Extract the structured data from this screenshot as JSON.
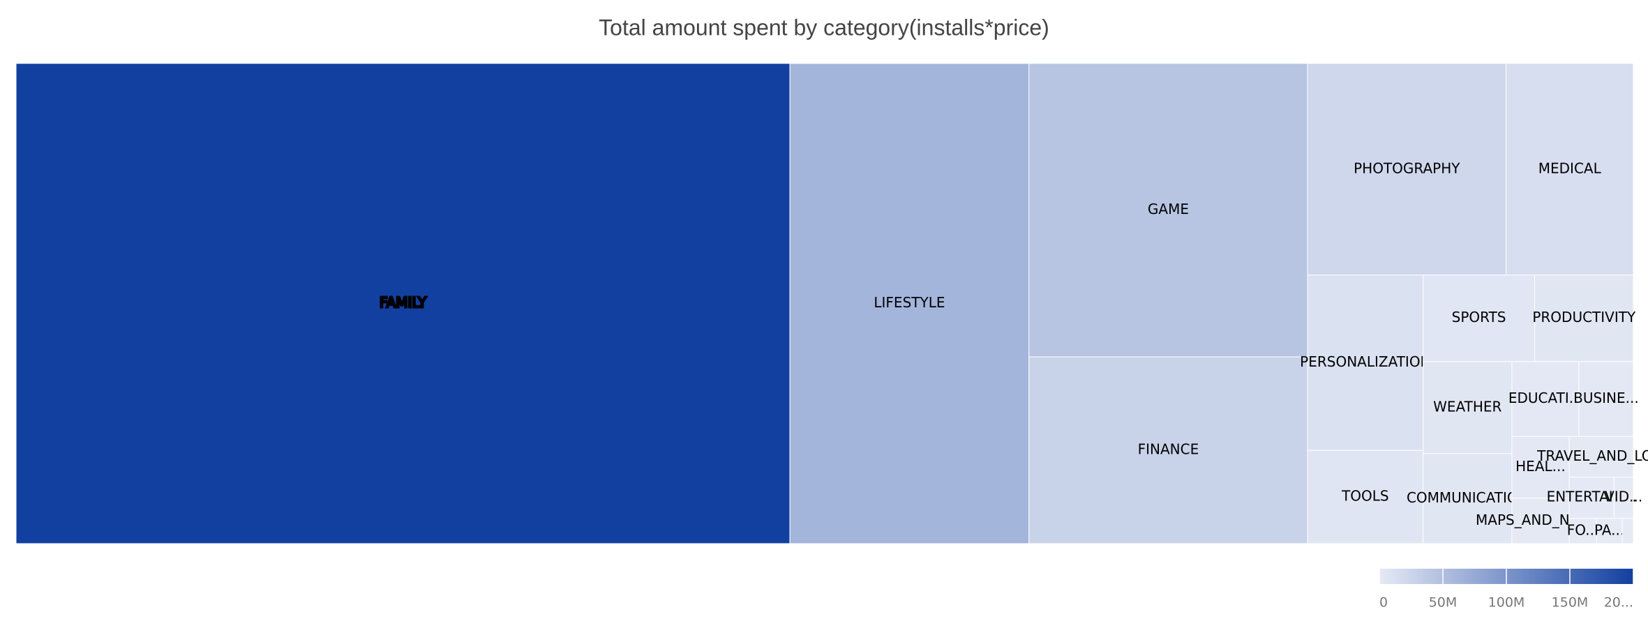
{
  "chart_data": {
    "type": "treemap",
    "title": "Total amount spent by category(installs*price)",
    "categories": [
      "FAMILY",
      "LIFESTYLE",
      "GAME",
      "FINANCE",
      "PHOTOGRAPHY",
      "MEDICAL",
      "PERSONALIZATION",
      "TOOLS",
      "SPORTS",
      "PRODUCTIVITY",
      "WEATHER",
      "COMMUNICATION",
      "EDUCATI...",
      "BUSINE...",
      "HEAL...",
      "MAPS_AND_NAVI...",
      "TRAVEL_AND_LO...",
      "ENTERTAIN...",
      "VID...",
      "FO...",
      "PA...",
      null
    ],
    "values": [
      200000000,
      61800000,
      44000000,
      28000000,
      22600000,
      14500000,
      10900000,
      5800000,
      5200000,
      4600000,
      4400000,
      4300000,
      2700000,
      2200000,
      1900000,
      1400000,
      1400000,
      1000000,
      430000,
      370000,
      350000,
      150000
    ],
    "colorscale": [
      "#e6eaf5",
      "#1240a0"
    ],
    "colorlim": [
      0,
      200000000
    ],
    "colorticks": [
      0,
      {
        "value": 50000000,
        "label": "50M"
      },
      {
        "value": 100000000,
        "label": "100M"
      },
      {
        "value": 150000000,
        "label": "150M"
      },
      {
        "value": 200000000,
        "label": "20..."
      }
    ]
  }
}
